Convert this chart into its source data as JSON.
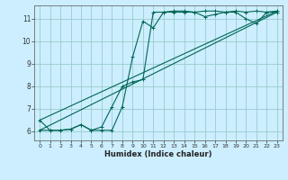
{
  "xlabel": "Humidex (Indice chaleur)",
  "bg_color": "#cceeff",
  "grid_color": "#99cccc",
  "line_color": "#006655",
  "xlim": [
    -0.5,
    23.5
  ],
  "ylim": [
    5.6,
    11.6
  ],
  "xticks": [
    0,
    1,
    2,
    3,
    4,
    5,
    6,
    7,
    8,
    9,
    10,
    11,
    12,
    13,
    14,
    15,
    16,
    17,
    18,
    19,
    20,
    21,
    22,
    23
  ],
  "yticks": [
    6,
    7,
    8,
    9,
    10,
    11
  ],
  "series1_x": [
    0,
    1,
    2,
    3,
    4,
    5,
    6,
    7,
    8,
    9,
    10,
    11,
    12,
    13,
    14,
    15,
    16,
    17,
    18,
    19,
    20,
    21,
    22,
    23
  ],
  "series1_y": [
    6.5,
    6.05,
    6.05,
    6.1,
    6.3,
    6.05,
    6.05,
    6.05,
    7.1,
    9.3,
    10.9,
    10.6,
    11.3,
    11.35,
    11.35,
    11.3,
    11.35,
    11.35,
    11.3,
    11.35,
    11.3,
    11.35,
    11.3,
    11.35
  ],
  "series2_x": [
    0,
    1,
    2,
    3,
    4,
    5,
    6,
    7,
    8,
    9,
    10,
    11,
    12,
    13,
    14,
    15,
    16,
    17,
    18,
    19,
    20,
    21,
    22,
    23
  ],
  "series2_y": [
    6.05,
    6.05,
    6.05,
    6.1,
    6.3,
    6.05,
    6.2,
    7.1,
    8.0,
    8.2,
    8.3,
    11.3,
    11.3,
    11.3,
    11.3,
    11.3,
    11.1,
    11.2,
    11.3,
    11.3,
    11.0,
    10.8,
    11.3,
    11.3
  ],
  "line1_x": [
    0,
    23
  ],
  "line1_y": [
    6.05,
    11.3
  ],
  "line2_x": [
    0,
    23
  ],
  "line2_y": [
    6.5,
    11.35
  ]
}
